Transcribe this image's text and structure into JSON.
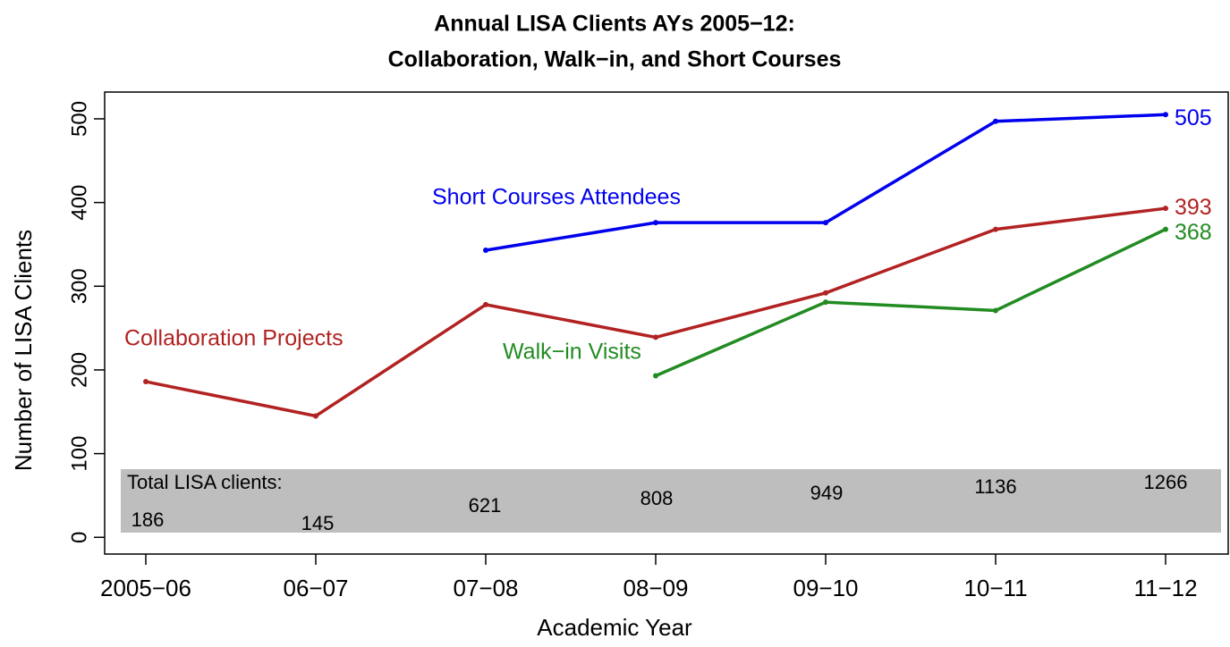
{
  "chart_data": {
    "type": "line",
    "title": [
      "Annual LISA Clients AYs 2005−12:",
      "Collaboration, Walk−in, and Short Courses"
    ],
    "x_label": "Academic Year",
    "y_label": "Number of LISA Clients",
    "categories": [
      "2005−06",
      "06−07",
      "07−08",
      "08−09",
      "09−10",
      "10−11",
      "11−12"
    ],
    "series": [
      {
        "name": "Collaboration Projects",
        "color": "#b22222",
        "values": [
          186,
          145,
          278,
          239,
          292,
          368,
          393
        ]
      },
      {
        "name": "Walk−in Visits",
        "color": "#228b22",
        "values": [
          null,
          null,
          null,
          193,
          281,
          271,
          368
        ]
      },
      {
        "name": "Short Courses Attendees",
        "color": "#0000ee",
        "values": [
          null,
          null,
          343,
          376,
          376,
          497,
          505
        ]
      }
    ],
    "totals_label": "Total LISA clients:",
    "totals": [
      186,
      145,
      621,
      808,
      949,
      1136,
      1266
    ],
    "ylim": [
      -20,
      532
    ],
    "yticks": [
      0,
      100,
      200,
      300,
      400,
      500
    ]
  }
}
